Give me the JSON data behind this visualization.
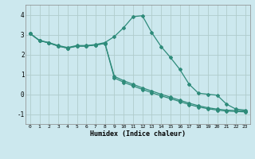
{
  "xlabel": "Humidex (Indice chaleur)",
  "background_color": "#cce8ee",
  "grid_color": "#b0cccc",
  "line_color": "#2e8b7a",
  "xlim": [
    -0.5,
    23.5
  ],
  "ylim": [
    -1.5,
    4.5
  ],
  "xticks": [
    0,
    1,
    2,
    3,
    4,
    5,
    6,
    7,
    8,
    9,
    10,
    11,
    12,
    13,
    14,
    15,
    16,
    17,
    18,
    19,
    20,
    21,
    22,
    23
  ],
  "yticks": [
    -1,
    0,
    1,
    2,
    3,
    4
  ],
  "series": [
    [
      3.05,
      2.7,
      2.6,
      2.45,
      2.35,
      2.45,
      2.45,
      2.5,
      2.6,
      2.9,
      3.35,
      3.9,
      3.95,
      3.1,
      2.4,
      1.85,
      1.25,
      0.5,
      0.05,
      0.0,
      -0.05,
      -0.5,
      -0.75,
      -0.8
    ],
    [
      3.05,
      2.7,
      2.58,
      2.42,
      2.32,
      2.42,
      2.42,
      2.48,
      2.55,
      0.9,
      0.68,
      0.5,
      0.32,
      0.16,
      0.0,
      -0.15,
      -0.3,
      -0.45,
      -0.58,
      -0.68,
      -0.75,
      -0.8,
      -0.82,
      -0.84
    ],
    [
      3.05,
      2.7,
      2.58,
      2.42,
      2.32,
      2.42,
      2.42,
      2.48,
      2.55,
      0.82,
      0.6,
      0.42,
      0.24,
      0.08,
      -0.08,
      -0.22,
      -0.37,
      -0.52,
      -0.64,
      -0.73,
      -0.8,
      -0.85,
      -0.87,
      -0.89
    ]
  ]
}
